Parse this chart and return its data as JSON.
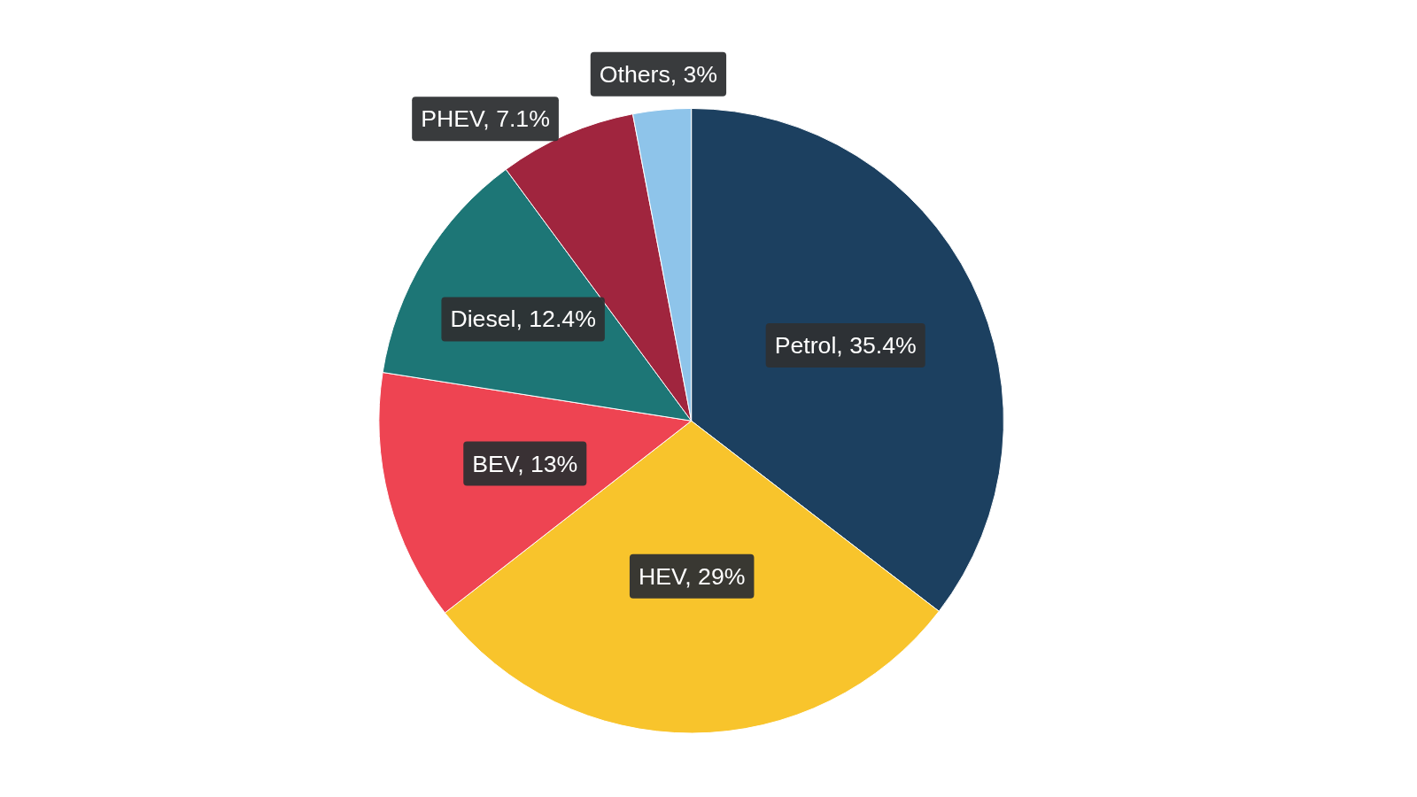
{
  "chart_data": {
    "type": "pie",
    "categories": [
      "Petrol",
      "HEV",
      "BEV",
      "Diesel",
      "PHEV",
      "Others"
    ],
    "values": [
      35.4,
      29,
      13,
      12.4,
      7.1,
      3
    ],
    "colors": [
      "#1c4060",
      "#f8c42c",
      "#ee4452",
      "#1d7676",
      "#a0253e",
      "#8ec4ea"
    ],
    "value_labels": [
      "35.4%",
      "29%",
      "13%",
      "12.4%",
      "7.1%",
      "3%"
    ]
  }
}
